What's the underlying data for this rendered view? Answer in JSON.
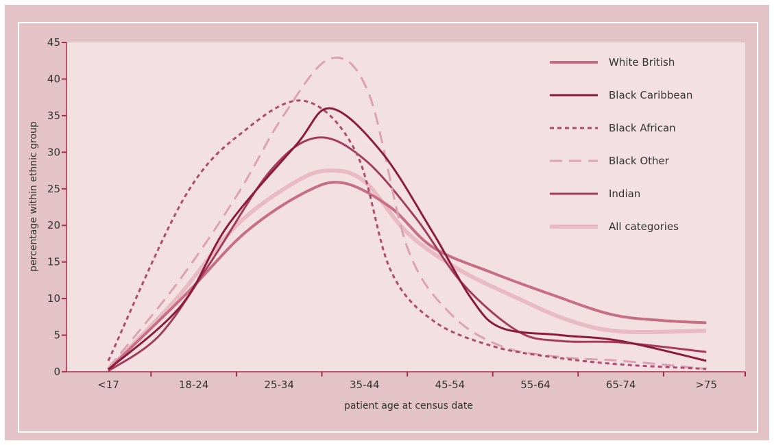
{
  "chart_data": {
    "type": "line",
    "title": "",
    "xlabel": "patient age at census date",
    "ylabel": "percentage within ethnic group",
    "categories": [
      "<17",
      "18-24",
      "25-34",
      "35-44",
      "45-54",
      "55-64",
      "65-74",
      ">75"
    ],
    "ylim": [
      0,
      45
    ],
    "yticks": [
      0,
      5,
      10,
      15,
      20,
      25,
      30,
      35,
      40,
      45
    ],
    "grid": false,
    "legend_position": "top-right",
    "series": [
      {
        "name": "White British",
        "color": "#c76e85",
        "dash": "solid",
        "width": 4,
        "points": [
          [
            0,
            0.3
          ],
          [
            0.9,
            10.5
          ],
          [
            1.6,
            19.0
          ],
          [
            2.3,
            24.5
          ],
          [
            2.75,
            25.8
          ],
          [
            3.3,
            22.5
          ],
          [
            3.8,
            17.0
          ],
          [
            4.5,
            13.5
          ],
          [
            5.2,
            10.5
          ],
          [
            5.9,
            7.8
          ],
          [
            6.5,
            7.0
          ],
          [
            7.0,
            6.7
          ]
        ]
      },
      {
        "name": "Black Caribbean",
        "color": "#8b1a3b",
        "dash": "solid",
        "width": 3,
        "points": [
          [
            0,
            0.3
          ],
          [
            0.85,
            9.0
          ],
          [
            1.4,
            20.0
          ],
          [
            2.2,
            31.0
          ],
          [
            2.6,
            36.0
          ],
          [
            3.2,
            30.0
          ],
          [
            3.8,
            19.0
          ],
          [
            4.25,
            10.0
          ],
          [
            4.6,
            6.0
          ],
          [
            5.3,
            5.0
          ],
          [
            6.0,
            4.2
          ],
          [
            7.0,
            1.5
          ]
        ]
      },
      {
        "name": "Black African",
        "color": "#b04a6b",
        "dash": "6,5",
        "width": 3,
        "points": [
          [
            0,
            1.5
          ],
          [
            0.9,
            24.0
          ],
          [
            1.6,
            33.0
          ],
          [
            2.3,
            37.0
          ],
          [
            2.9,
            30.0
          ],
          [
            3.3,
            14.0
          ],
          [
            3.8,
            7.0
          ],
          [
            4.5,
            3.5
          ],
          [
            5.2,
            2.0
          ],
          [
            6.0,
            1.0
          ],
          [
            7.0,
            0.4
          ]
        ]
      },
      {
        "name": "Black Other",
        "color": "#dca2b1",
        "dash": "18,10",
        "width": 3,
        "points": [
          [
            0,
            0.5
          ],
          [
            0.8,
            12.0
          ],
          [
            1.5,
            24.0
          ],
          [
            2.05,
            35.0
          ],
          [
            2.6,
            42.8
          ],
          [
            3.05,
            38.0
          ],
          [
            3.5,
            17.0
          ],
          [
            4.0,
            8.0
          ],
          [
            4.6,
            3.5
          ],
          [
            5.3,
            2.0
          ],
          [
            6.0,
            1.5
          ],
          [
            7.0,
            0.4
          ]
        ]
      },
      {
        "name": "Indian",
        "color": "#a33c5c",
        "dash": "solid",
        "width": 3,
        "points": [
          [
            0,
            0.1
          ],
          [
            0.6,
            5.0
          ],
          [
            1.2,
            15.0
          ],
          [
            1.9,
            27.5
          ],
          [
            2.45,
            32.0
          ],
          [
            3.0,
            29.0
          ],
          [
            3.6,
            21.0
          ],
          [
            4.15,
            12.0
          ],
          [
            4.8,
            5.5
          ],
          [
            5.3,
            4.2
          ],
          [
            6.0,
            4.0
          ],
          [
            7.0,
            2.7
          ]
        ]
      },
      {
        "name": "All categories",
        "color": "#e8bac4",
        "dash": "solid",
        "width": 6,
        "points": [
          [
            0,
            0.3
          ],
          [
            0.8,
            10.0
          ],
          [
            1.5,
            20.0
          ],
          [
            2.2,
            26.0
          ],
          [
            2.6,
            27.5
          ],
          [
            3.0,
            26.0
          ],
          [
            3.5,
            19.0
          ],
          [
            4.1,
            14.0
          ],
          [
            4.8,
            10.0
          ],
          [
            5.4,
            7.0
          ],
          [
            6.0,
            5.5
          ],
          [
            7.0,
            5.6
          ]
        ]
      }
    ]
  }
}
